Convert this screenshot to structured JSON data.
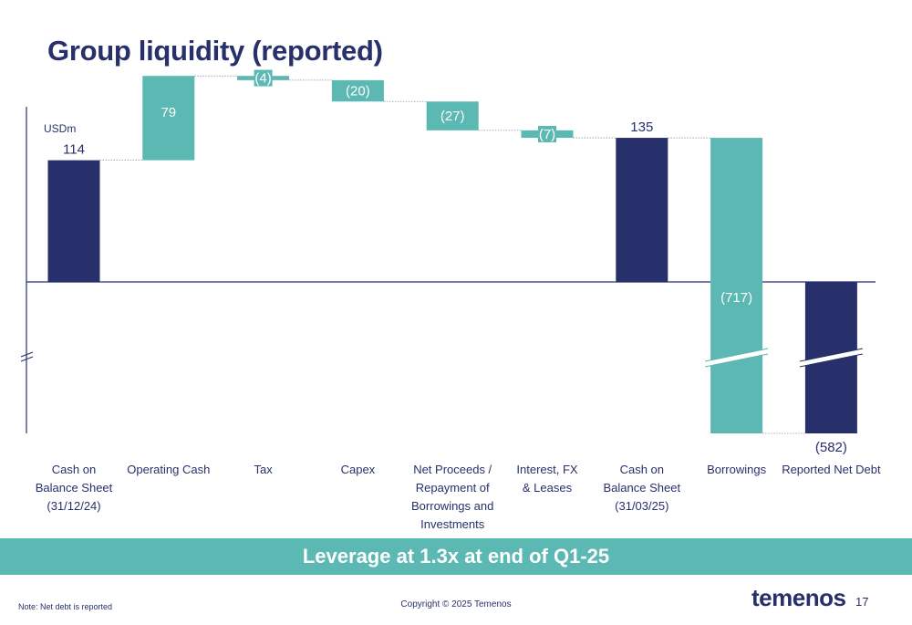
{
  "page": {
    "title": "Group liquidity (reported)",
    "banner": "Leverage at 1.3x at end of Q1-25",
    "note": "Note: Net debt is reported",
    "copyright": "Copyright © 2025 Temenos",
    "logo": "temenos",
    "page_number": "17"
  },
  "chart_data": {
    "type": "waterfall",
    "unit_label": "USDm",
    "axis_break": true,
    "colors": {
      "total": "#27306b",
      "change": "#5bb8b3",
      "connector": "#8a8fb5",
      "axis": "#27306b"
    },
    "bars": [
      {
        "category": "Cash on\nBalance Sheet\n(31/12/24)",
        "kind": "total",
        "value": 114,
        "label": "114"
      },
      {
        "category": "Operating Cash",
        "kind": "change",
        "value": 79,
        "label": "79"
      },
      {
        "category": "Tax",
        "kind": "change",
        "value": -4,
        "label": "(4)"
      },
      {
        "category": "Capex",
        "kind": "change",
        "value": -20,
        "label": "(20)"
      },
      {
        "category": "Net Proceeds /\nRepayment of\nBorrowings and\nInvestments",
        "kind": "change",
        "value": -27,
        "label": "(27)"
      },
      {
        "category": "Interest, FX\n& Leases",
        "kind": "change",
        "value": -7,
        "label": "(7)"
      },
      {
        "category": "Cash on\nBalance Sheet\n(31/03/25)",
        "kind": "total",
        "value": 135,
        "label": "135"
      },
      {
        "category": "Borrowings",
        "kind": "change",
        "value": -717,
        "label": "(717)",
        "broken": true
      },
      {
        "category": "Reported Net Debt",
        "kind": "total",
        "value": -582,
        "label": "(582)",
        "broken": true
      }
    ]
  }
}
